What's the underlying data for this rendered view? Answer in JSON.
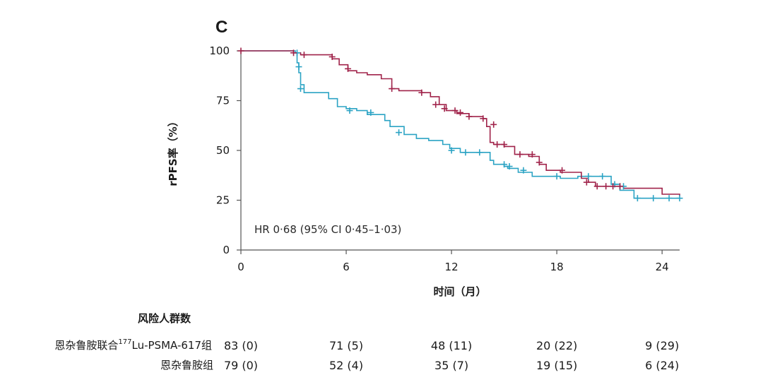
{
  "chart_data": {
    "type": "line",
    "panel_label": "C",
    "ylabel": "rPFS率（%）",
    "xlabel": "时间（月）",
    "xlim": [
      0,
      25
    ],
    "ylim": [
      0,
      100
    ],
    "xticks": [
      0,
      6,
      12,
      18,
      24
    ],
    "yticks": [
      0,
      25,
      50,
      75,
      100
    ],
    "annotation": "HR 0·68 (95% CI 0·45–1·03)",
    "colors": {
      "combo": "#a0234a",
      "mono": "#2ba3c4",
      "axis": "#555555"
    },
    "series": [
      {
        "key": "combo",
        "steps": [
          [
            0,
            100
          ],
          [
            3.0,
            99
          ],
          [
            3.4,
            98
          ],
          [
            5.2,
            96
          ],
          [
            5.6,
            93
          ],
          [
            6.1,
            90
          ],
          [
            6.6,
            89
          ],
          [
            7.2,
            88
          ],
          [
            8.0,
            86
          ],
          [
            8.6,
            81
          ],
          [
            9.0,
            80
          ],
          [
            10.3,
            79
          ],
          [
            10.8,
            77
          ],
          [
            11.3,
            73
          ],
          [
            11.7,
            70
          ],
          [
            12.3,
            68.5
          ],
          [
            13.0,
            67
          ],
          [
            13.8,
            66
          ],
          [
            14.0,
            62
          ],
          [
            14.2,
            54
          ],
          [
            14.4,
            53
          ],
          [
            15.0,
            52
          ],
          [
            15.6,
            48
          ],
          [
            16.4,
            47
          ],
          [
            17.0,
            43
          ],
          [
            17.4,
            40
          ],
          [
            18.2,
            39
          ],
          [
            19.4,
            36
          ],
          [
            19.8,
            34
          ],
          [
            20.2,
            32
          ],
          [
            21.8,
            31
          ],
          [
            24.0,
            28
          ],
          [
            25.0,
            27
          ]
        ],
        "censors": [
          [
            0,
            100
          ],
          [
            3.0,
            99
          ],
          [
            3.6,
            98
          ],
          [
            5.2,
            97
          ],
          [
            6.1,
            91
          ],
          [
            8.6,
            81
          ],
          [
            10.3,
            79
          ],
          [
            11.1,
            73
          ],
          [
            11.6,
            71
          ],
          [
            12.2,
            70
          ],
          [
            12.5,
            69
          ],
          [
            13.0,
            67
          ],
          [
            13.8,
            66
          ],
          [
            14.4,
            63
          ],
          [
            14.6,
            53
          ],
          [
            15.0,
            53
          ],
          [
            15.9,
            48
          ],
          [
            16.6,
            48
          ],
          [
            17.0,
            44
          ],
          [
            18.3,
            40
          ],
          [
            19.7,
            34
          ],
          [
            20.3,
            32
          ],
          [
            20.8,
            32
          ],
          [
            21.2,
            32
          ],
          [
            21.6,
            32
          ]
        ]
      },
      {
        "key": "mono",
        "steps": [
          [
            0,
            100
          ],
          [
            3.1,
            99
          ],
          [
            3.2,
            94
          ],
          [
            3.3,
            89
          ],
          [
            3.4,
            83
          ],
          [
            3.6,
            79
          ],
          [
            4.2,
            79
          ],
          [
            5.0,
            76
          ],
          [
            5.5,
            72
          ],
          [
            6.0,
            71
          ],
          [
            6.6,
            70
          ],
          [
            7.2,
            68
          ],
          [
            8.2,
            65
          ],
          [
            8.5,
            62
          ],
          [
            9.3,
            58
          ],
          [
            10.0,
            56
          ],
          [
            10.7,
            55
          ],
          [
            11.5,
            53
          ],
          [
            11.9,
            51
          ],
          [
            12.5,
            49
          ],
          [
            14.0,
            49
          ],
          [
            14.2,
            45
          ],
          [
            14.4,
            43
          ],
          [
            15.0,
            42
          ],
          [
            15.2,
            41
          ],
          [
            15.8,
            39
          ],
          [
            16.6,
            37
          ],
          [
            18.2,
            36
          ],
          [
            19.2,
            37
          ],
          [
            21.0,
            37
          ],
          [
            21.1,
            33
          ],
          [
            21.6,
            30
          ],
          [
            22.4,
            26
          ],
          [
            25.0,
            26
          ]
        ],
        "censors": [
          [
            3.2,
            99
          ],
          [
            3.3,
            92
          ],
          [
            3.4,
            81
          ],
          [
            6.2,
            70
          ],
          [
            7.4,
            69
          ],
          [
            9.0,
            59
          ],
          [
            12.0,
            50
          ],
          [
            12.8,
            49
          ],
          [
            13.6,
            49
          ],
          [
            15.0,
            43
          ],
          [
            15.3,
            42
          ],
          [
            16.1,
            40
          ],
          [
            18.0,
            37
          ],
          [
            19.8,
            37
          ],
          [
            20.6,
            37
          ],
          [
            21.3,
            33
          ],
          [
            21.8,
            32
          ],
          [
            22.6,
            26
          ],
          [
            23.5,
            26
          ],
          [
            24.4,
            26
          ],
          [
            25.0,
            26
          ]
        ]
      }
    ],
    "risk_table": {
      "title": "风险人群数",
      "times": [
        0,
        6,
        12,
        18,
        24
      ],
      "rows": [
        {
          "key": "combo",
          "label_main": "恩杂鲁胺联合",
          "label_sup": "177",
          "label_tail": "Lu-PSMA-617组",
          "counts": [
            "83 (0)",
            "71 (5)",
            "48 (11)",
            "20 (22)",
            "9 (29)"
          ]
        },
        {
          "key": "mono",
          "label_main": "恩杂鲁胺组",
          "label_sup": "",
          "label_tail": "",
          "counts": [
            "79 (0)",
            "52 (4)",
            "35 (7)",
            "19 (15)",
            "6 (24)"
          ]
        }
      ]
    }
  }
}
